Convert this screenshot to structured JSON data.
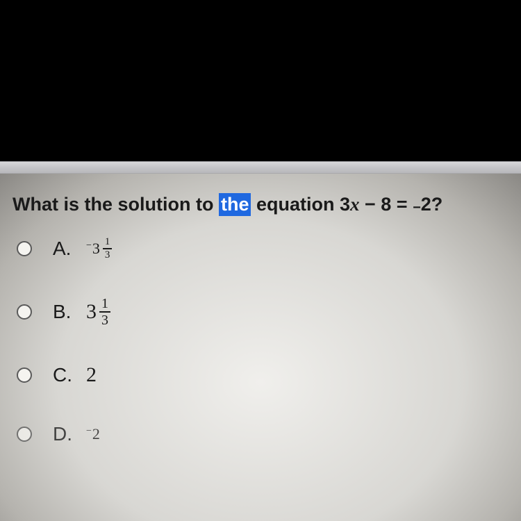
{
  "question": {
    "prefix": "What is the solution to ",
    "highlighted": "the",
    "mid": " equation 3",
    "var": "x",
    "after_var": " − 8 = ",
    "neg_prefix": "−",
    "rhs": "2?"
  },
  "options": {
    "a": {
      "letter": "A.",
      "neg": "−",
      "whole": "3",
      "num": "1",
      "den": "3"
    },
    "b": {
      "letter": "B.",
      "whole": "3",
      "num": "1",
      "den": "3"
    },
    "c": {
      "letter": "C.",
      "value": "2"
    },
    "d": {
      "letter": "D.",
      "neg": "−",
      "value": "2"
    }
  },
  "colors": {
    "highlight_bg": "#1f68e0",
    "highlight_fg": "#ffffff",
    "text": "#1a1a1a",
    "black_bar": "#000000"
  }
}
